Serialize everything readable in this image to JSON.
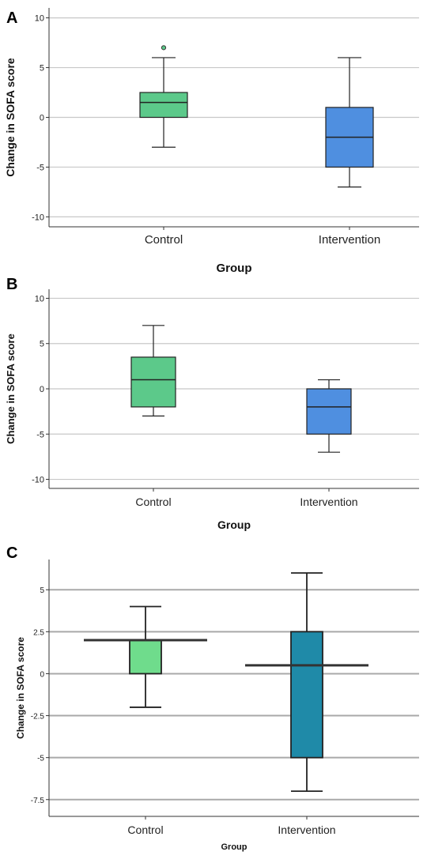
{
  "chart_data": [
    {
      "panel_label": "A",
      "type": "box",
      "xlabel": "Group",
      "ylabel": "Change in SOFA score",
      "categories": [
        "Control",
        "Intervention"
      ],
      "ylim": [
        -11,
        11
      ],
      "yticks": [
        10,
        5,
        0,
        -5,
        -10
      ],
      "ytick_labels": [
        "10",
        "5",
        "0",
        "-5",
        "-10"
      ],
      "grid": true,
      "boxes": [
        {
          "category": "Control",
          "whisker_low": -3,
          "q1": 0,
          "median": 1.5,
          "q3": 2.5,
          "whisker_high": 6,
          "outliers": [
            7
          ],
          "color": "#5cc98a"
        },
        {
          "category": "Intervention",
          "whisker_low": -7,
          "q1": -5,
          "median": -2,
          "q3": 1,
          "whisker_high": 6,
          "outliers": [],
          "color": "#4f8fe0"
        }
      ]
    },
    {
      "panel_label": "B",
      "type": "box",
      "xlabel": "Group",
      "ylabel": "Change in SOFA score",
      "categories": [
        "Control",
        "Intervention"
      ],
      "ylim": [
        -11,
        11
      ],
      "yticks": [
        10,
        5,
        0,
        -5,
        -10
      ],
      "ytick_labels": [
        "10",
        "5",
        "0",
        "-5",
        "-10"
      ],
      "grid": true,
      "boxes": [
        {
          "category": "Control",
          "whisker_low": -3,
          "q1": -2,
          "median": 1,
          "q3": 3.5,
          "whisker_high": 7,
          "outliers": [],
          "color": "#5cc98a"
        },
        {
          "category": "Intervention",
          "whisker_low": -7,
          "q1": -5,
          "median": -2,
          "q3": 0,
          "whisker_high": 1,
          "outliers": [],
          "color": "#4f8fe0"
        }
      ]
    },
    {
      "panel_label": "C",
      "type": "box",
      "xlabel": "Group",
      "ylabel": "Change in SOFA score",
      "categories": [
        "Control",
        "Intervention"
      ],
      "ylim": [
        -8.5,
        6.8
      ],
      "yticks": [
        5,
        2.5,
        0,
        -2.5,
        -5,
        -7.5
      ],
      "ytick_labels": [
        "5",
        "2.5",
        "0",
        "-2.5",
        "-5",
        "-7.5"
      ],
      "grid": true,
      "boxes": [
        {
          "category": "Control",
          "whisker_low": -2,
          "q1": 0,
          "median": 2,
          "q3": 2,
          "whisker_high": 4,
          "outliers": [],
          "color": "#6fdc8c"
        },
        {
          "category": "Intervention",
          "whisker_low": -7,
          "q1": -5,
          "median": 0.5,
          "q3": 2.5,
          "whisker_high": 6,
          "outliers": [],
          "color": "#1f8aa8"
        }
      ]
    }
  ]
}
